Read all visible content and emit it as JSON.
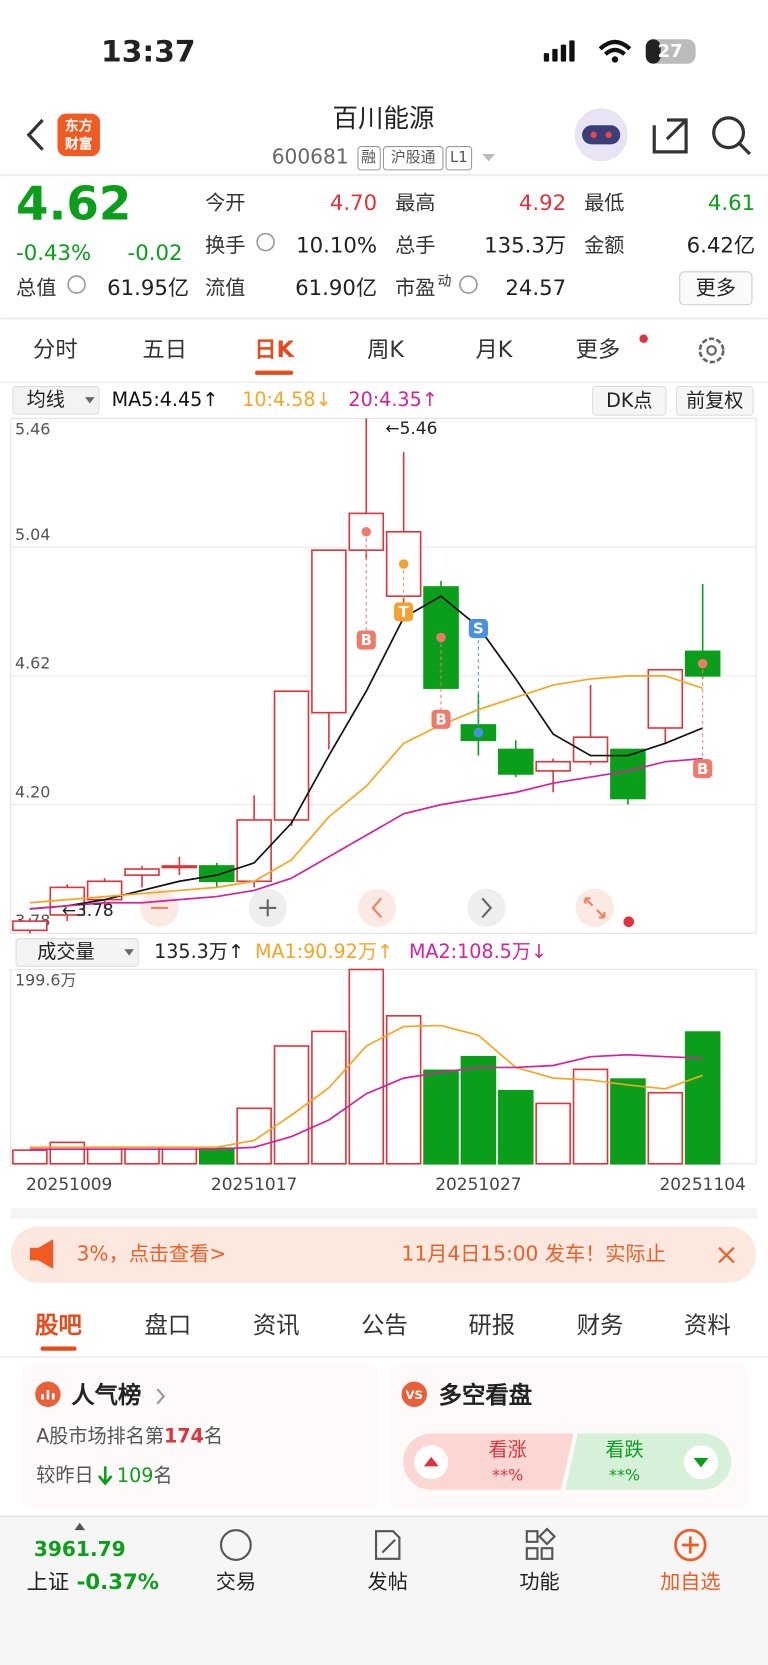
{
  "status_bar": {
    "time": "13:37",
    "battery": "27"
  },
  "header": {
    "title": "百川能源",
    "code": "600681",
    "tags": [
      "融",
      "沪股通",
      "L1"
    ],
    "logo": [
      "东方",
      "财富"
    ]
  },
  "quote": {
    "price": "4.62",
    "change_pct": "-0.43%",
    "change": "-0.02",
    "more": "更多",
    "stats": [
      {
        "label": "今开",
        "value": "4.70",
        "color": "#e0323a"
      },
      {
        "label": "最高",
        "value": "4.92",
        "color": "#e0323a"
      },
      {
        "label": "最低",
        "value": "4.61",
        "color": "#0a9e1a"
      },
      {
        "label": "换手",
        "value": "10.10%"
      },
      {
        "label": "总手",
        "value": "135.3万"
      },
      {
        "label": "金额",
        "value": "6.42亿"
      },
      {
        "label": "总值",
        "value": "61.95亿"
      },
      {
        "label": "流值",
        "value": "61.90亿"
      },
      {
        "label": "市盈",
        "sup": "动",
        "value": "24.57"
      }
    ]
  },
  "chart_tabs": {
    "items": [
      "分时",
      "五日",
      "日K",
      "周K",
      "月K",
      "更多"
    ],
    "active": 2
  },
  "chart_data": [
    {
      "type": "candlestick",
      "indicator": "均线",
      "buttons": [
        "DK点",
        "前复权"
      ],
      "ylim": [
        3.78,
        5.46
      ],
      "yticks": [
        3.78,
        {
          "value": 4.2,
          "label": "4.20"
        },
        4.62,
        5.04,
        5.46
      ],
      "up_color": "#e0323a",
      "down_color": "#0a9e1a",
      "open": [
        3.79,
        3.84,
        3.89,
        3.97,
        4.0,
        4.0,
        3.95,
        4.15,
        4.5,
        5.03,
        4.88,
        4.91,
        4.46,
        4.38,
        4.31,
        4.34,
        4.38,
        4.45,
        4.7
      ],
      "high": [
        3.83,
        3.94,
        3.96,
        4.0,
        4.03,
        4.01,
        4.23,
        4.57,
        5.03,
        5.46,
        5.35,
        4.93,
        4.56,
        4.41,
        4.35,
        4.59,
        4.38,
        4.64,
        4.92
      ],
      "low": [
        3.78,
        3.82,
        3.86,
        3.93,
        3.97,
        3.93,
        3.93,
        4.13,
        4.38,
        5.0,
        4.86,
        4.58,
        4.36,
        4.29,
        4.24,
        4.33,
        4.2,
        4.4,
        4.61
      ],
      "close": [
        3.82,
        3.93,
        3.95,
        3.99,
        4.0,
        3.95,
        4.15,
        4.57,
        5.03,
        5.15,
        5.09,
        4.58,
        4.41,
        4.3,
        4.34,
        4.42,
        4.22,
        4.64,
        4.62
      ],
      "series": [
        {
          "name": "MA5:4.45↑",
          "color": "#111111",
          "values": [
            3.86,
            3.87,
            3.89,
            3.92,
            3.95,
            3.97,
            4.01,
            4.14,
            4.36,
            4.57,
            4.81,
            4.88,
            4.78,
            4.61,
            4.43,
            4.36,
            4.36,
            4.4,
            4.45
          ]
        },
        {
          "name": "10:4.58↓",
          "color": "#f5a623",
          "values": [
            3.88,
            3.89,
            3.9,
            3.91,
            3.92,
            3.93,
            3.95,
            4.02,
            4.16,
            4.26,
            4.4,
            4.46,
            4.51,
            4.55,
            4.59,
            4.61,
            4.62,
            4.62,
            4.58
          ]
        },
        {
          "name": "20:4.35↑",
          "color": "#d4239a",
          "values": [
            3.86,
            3.87,
            3.88,
            3.88,
            3.89,
            3.9,
            3.92,
            3.96,
            4.03,
            4.1,
            4.17,
            4.2,
            4.22,
            4.24,
            4.27,
            4.29,
            4.31,
            4.34,
            4.35
          ]
        }
      ],
      "annotations": [
        {
          "index": 9,
          "value": 5.46,
          "label": "←5.46"
        },
        {
          "index": 0,
          "value": 3.78,
          "label": "←3.78"
        }
      ],
      "signals": [
        {
          "index": 9,
          "label": "B"
        },
        {
          "index": 10,
          "label": "T"
        },
        {
          "index": 11,
          "label": "B"
        },
        {
          "index": 12,
          "label": "S"
        },
        {
          "index": 18,
          "label": "B"
        }
      ]
    },
    {
      "type": "bar",
      "indicator": "成交量",
      "current_label": "135.3万↑",
      "ylim": [
        0,
        199.6
      ],
      "yticks": [
        {
          "value": 199.6,
          "label": "199.6万"
        }
      ],
      "categories": [
        "20251009",
        null,
        null,
        null,
        null,
        null,
        "20251017",
        null,
        null,
        null,
        null,
        null,
        "20251027",
        null,
        null,
        null,
        null,
        null,
        "20251104"
      ],
      "values": [
        14,
        22,
        17,
        17,
        17,
        16,
        57,
        121,
        136,
        199.6,
        152,
        96,
        110,
        75,
        62,
        97,
        87,
        73,
        135.3
      ],
      "series": [
        {
          "name": "MA1:90.92万↑",
          "color": "#f5a623",
          "values": [
            17,
            17,
            17,
            17,
            17,
            17,
            24,
            50,
            78,
            121,
            141,
            142,
            132,
            99,
            88,
            86,
            81,
            77,
            90.92
          ]
        },
        {
          "name": "MA2:108.5万↓",
          "color": "#d4239a",
          "values": [
            15,
            15,
            15,
            15,
            15,
            15,
            17,
            28,
            45,
            72,
            88,
            94,
            99,
            99,
            101,
            110,
            112,
            110,
            108.5
          ]
        }
      ]
    }
  ],
  "news": {
    "left": "3%，点击查看>",
    "right": "11月4日15:00 发车！实际止"
  },
  "section_tabs": {
    "items": [
      "股吧",
      "盘口",
      "资讯",
      "公告",
      "研报",
      "财务",
      "资料"
    ],
    "active": 0
  },
  "popularity": {
    "title": "人气榜",
    "rank_prefix": "A股市场排名第",
    "rank": "174",
    "rank_suffix": "名",
    "change_prefix": "较昨日",
    "change": "109",
    "change_suffix": "名"
  },
  "sentiment": {
    "icon": "VS",
    "title": "多空看盘",
    "bull": "看涨",
    "bull_value": "**%",
    "bear": "看跌",
    "bear_value": "**%"
  },
  "bottom_nav": {
    "index_value": "3961.79",
    "index_name": "上证",
    "index_change": "-0.37%",
    "items": [
      "交易",
      "发帖",
      "功能",
      "加自选"
    ]
  }
}
